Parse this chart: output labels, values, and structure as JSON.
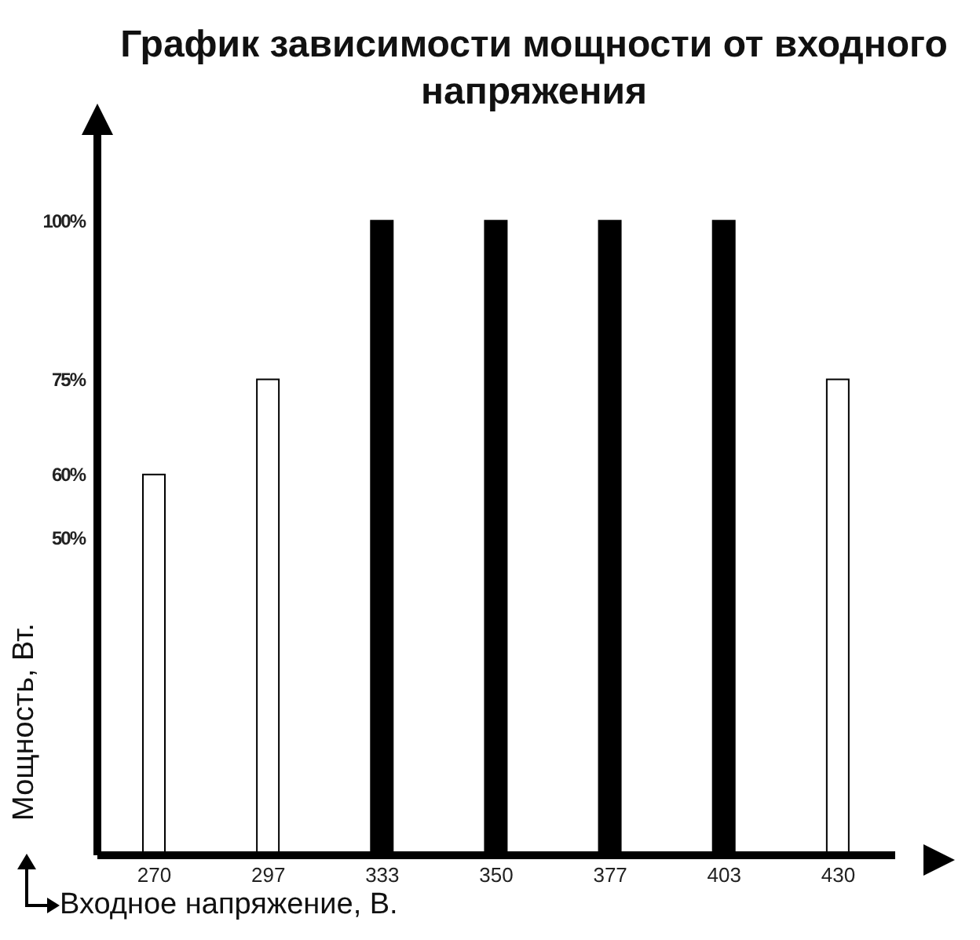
{
  "chart_data": {
    "type": "bar",
    "title": "График зависимости мощности от входного напряжения",
    "xlabel": "Входное напряжение, В.",
    "ylabel": "Мощность, Вт.",
    "categories": [
      "270",
      "297",
      "333",
      "350",
      "377",
      "403",
      "430"
    ],
    "values": [
      60,
      75,
      100,
      100,
      100,
      100,
      75
    ],
    "colors": [
      "#ffffff",
      "#ffffff",
      "#000000",
      "#000000",
      "#000000",
      "#000000",
      "#ffffff"
    ],
    "ylim": [
      0,
      115
    ],
    "yticks": [
      {
        "value": 50,
        "label": "50%"
      },
      {
        "value": 60,
        "label": "60%"
      },
      {
        "value": 75,
        "label": "75%"
      },
      {
        "value": 100,
        "label": "100%"
      }
    ]
  }
}
